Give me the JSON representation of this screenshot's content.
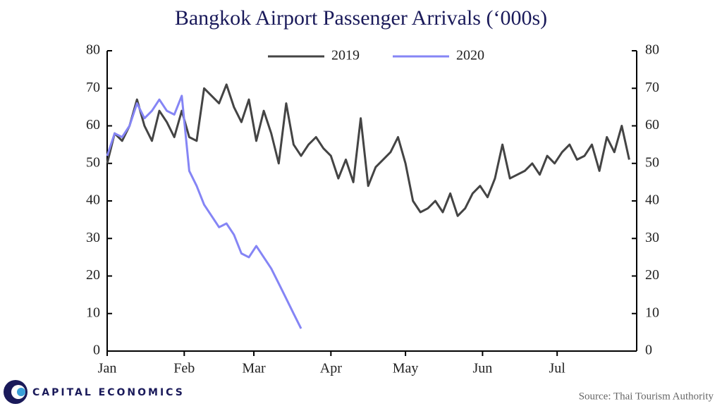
{
  "chart_data": {
    "type": "line",
    "title": "Bangkok Airport Passenger Arrivals (‘000s)",
    "source": "Source: Thai Tourism Authority",
    "logo": "CAPITAL ECONOMICS",
    "x": [
      1,
      4,
      7,
      10,
      13,
      16,
      19,
      22,
      25,
      28,
      31,
      34,
      37,
      40,
      43,
      46,
      49,
      52,
      55,
      58,
      61,
      64,
      67,
      70,
      73,
      76,
      79,
      82,
      85,
      88,
      91,
      94,
      97,
      100,
      103,
      106,
      109,
      112,
      115,
      118,
      121,
      124,
      127,
      130,
      133,
      136,
      139,
      142,
      145,
      148,
      151,
      154,
      157,
      160,
      163,
      166,
      169,
      172,
      175,
      178,
      181,
      184,
      187,
      190,
      193,
      196,
      199,
      202,
      205,
      208,
      211
    ],
    "series": [
      {
        "name": "2019",
        "color": "#444444",
        "values": [
          50,
          58,
          56,
          60,
          67,
          60,
          56,
          64,
          61,
          57,
          64,
          57,
          56,
          70,
          68,
          66,
          71,
          65,
          61,
          67,
          56,
          64,
          58,
          50,
          66,
          55,
          52,
          55,
          57,
          54,
          52,
          46,
          51,
          45,
          62,
          44,
          49,
          51,
          53,
          57,
          50,
          40,
          37,
          38,
          40,
          37,
          42,
          36,
          38,
          42,
          44,
          41,
          46,
          55,
          46,
          47,
          48,
          50,
          47,
          52,
          50,
          53,
          55,
          51,
          52,
          55,
          48,
          57,
          53,
          60,
          51
        ]
      },
      {
        "name": "2020",
        "color": "#8585f5",
        "values": [
          52,
          58,
          57,
          60,
          66,
          62,
          64,
          67,
          64,
          63,
          68,
          48,
          44,
          39,
          36,
          33,
          34,
          31,
          26,
          25,
          28,
          25,
          22,
          18,
          14,
          10,
          6,
          null,
          null,
          null,
          null,
          null,
          null,
          null,
          null,
          null,
          null,
          null,
          null,
          null,
          null,
          null,
          null,
          null,
          null,
          null,
          null,
          null,
          null,
          null,
          null,
          null,
          null,
          null,
          null,
          null,
          null,
          null,
          null,
          null,
          null,
          null,
          null,
          null,
          null,
          null,
          null,
          null,
          null,
          null,
          null
        ]
      }
    ],
    "xlim": [
      1,
      214
    ],
    "xticks": [
      {
        "value": 1,
        "label": "Jan"
      },
      {
        "value": 32,
        "label": "Feb"
      },
      {
        "value": 60,
        "label": "Mar"
      },
      {
        "value": 91,
        "label": "Apr"
      },
      {
        "value": 121,
        "label": "May"
      },
      {
        "value": 152,
        "label": "Jun"
      },
      {
        "value": 182,
        "label": "Jul"
      }
    ],
    "ylim": [
      0,
      80
    ],
    "yticks": [
      0,
      10,
      20,
      30,
      40,
      50,
      60,
      70,
      80
    ],
    "y2lim": [
      0,
      80
    ],
    "y2ticks": [
      0,
      10,
      20,
      30,
      40,
      50,
      60,
      70,
      80
    ],
    "legend": "top"
  }
}
